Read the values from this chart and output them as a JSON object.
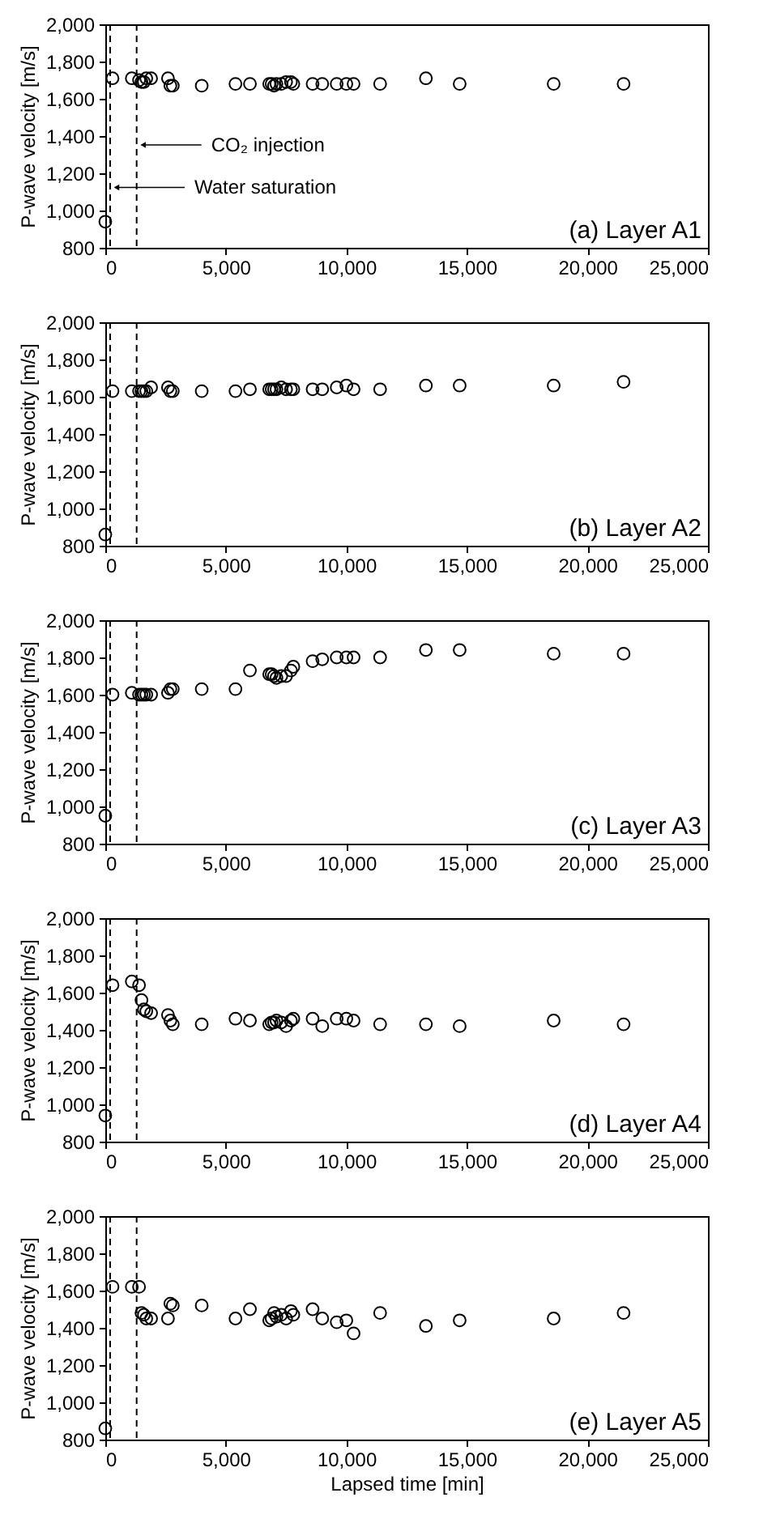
{
  "chart_data": [
    {
      "type": "scatter",
      "ylabel": "P-wave velocity [m/s]",
      "marker": "circle",
      "annotations": [
        "(a) Layer A1"
      ],
      "x": [
        0,
        300,
        1100,
        1400,
        1500,
        1600,
        1700,
        1900,
        2600,
        2700,
        2800,
        4000,
        5400,
        6000,
        6800,
        6900,
        7000,
        7100,
        7300,
        7500,
        7700,
        7800,
        8600,
        9000,
        9600,
        10000,
        10300,
        11400,
        13300,
        14700,
        18600,
        21500
      ],
      "series": [
        {
          "color": "#000000",
          "values": [
            940,
            1710,
            1710,
            1700,
            1690,
            1690,
            1710,
            1710,
            1710,
            1670,
            1670,
            1670,
            1680,
            1680,
            1680,
            1680,
            1670,
            1680,
            1680,
            1690,
            1690,
            1680,
            1680,
            1680,
            1680,
            1680,
            1680,
            1680,
            1710,
            1680,
            1680,
            1680
          ]
        }
      ],
      "ref_lines": [
        {
          "axis": "x",
          "value": 200,
          "label": "Water saturation",
          "line_style": "dashed"
        },
        {
          "axis": "x",
          "value": 1300,
          "label": "CO₂ injection",
          "line_style": "dashed"
        }
      ],
      "xlim": [
        0,
        25000
      ],
      "xticks": [
        {
          "value": 0,
          "label": "0"
        },
        {
          "value": 5000,
          "label": "5,000"
        },
        {
          "value": 10000,
          "label": "10,000"
        },
        {
          "value": 15000,
          "label": "15,000"
        },
        {
          "value": 20000,
          "label": "20,000"
        },
        {
          "value": 25000,
          "label": "25,000"
        }
      ],
      "ylim": [
        800,
        2000
      ],
      "yticks": [
        {
          "value": 800,
          "label": "800"
        },
        {
          "value": 1000,
          "label": "1,000"
        },
        {
          "value": 1200,
          "label": "1,200"
        },
        {
          "value": 1400,
          "label": "1,400"
        },
        {
          "value": 1600,
          "label": "1,600"
        },
        {
          "value": 1800,
          "label": "1,800"
        },
        {
          "value": 2000,
          "label": "2,000"
        }
      ]
    },
    {
      "type": "scatter",
      "ylabel": "P-wave velocity [m/s]",
      "marker": "circle",
      "annotations": [
        "(b) Layer A2"
      ],
      "x": [
        0,
        300,
        1100,
        1400,
        1500,
        1600,
        1700,
        1900,
        2600,
        2700,
        2800,
        4000,
        5400,
        6000,
        6800,
        6900,
        7000,
        7100,
        7300,
        7500,
        7700,
        7800,
        8600,
        9000,
        9600,
        10000,
        10300,
        11400,
        13300,
        14700,
        18600,
        21500
      ],
      "series": [
        {
          "color": "#000000",
          "values": [
            860,
            1630,
            1630,
            1630,
            1630,
            1630,
            1630,
            1650,
            1650,
            1630,
            1630,
            1630,
            1630,
            1640,
            1640,
            1640,
            1640,
            1640,
            1650,
            1640,
            1640,
            1640,
            1640,
            1640,
            1650,
            1660,
            1640,
            1640,
            1660,
            1660,
            1660,
            1680
          ]
        }
      ],
      "ref_lines": [
        {
          "axis": "x",
          "value": 200,
          "line_style": "dashed"
        },
        {
          "axis": "x",
          "value": 1300,
          "line_style": "dashed"
        }
      ],
      "xlim": [
        0,
        25000
      ],
      "xticks": [
        {
          "value": 0,
          "label": "0"
        },
        {
          "value": 5000,
          "label": "5,000"
        },
        {
          "value": 10000,
          "label": "10,000"
        },
        {
          "value": 15000,
          "label": "15,000"
        },
        {
          "value": 20000,
          "label": "20,000"
        },
        {
          "value": 25000,
          "label": "25,000"
        }
      ],
      "ylim": [
        800,
        2000
      ],
      "yticks": [
        {
          "value": 800,
          "label": "800"
        },
        {
          "value": 1000,
          "label": "1,000"
        },
        {
          "value": 1200,
          "label": "1,200"
        },
        {
          "value": 1400,
          "label": "1,400"
        },
        {
          "value": 1600,
          "label": "1,600"
        },
        {
          "value": 1800,
          "label": "1,800"
        },
        {
          "value": 2000,
          "label": "2,000"
        }
      ]
    },
    {
      "type": "scatter",
      "ylabel": "P-wave velocity [m/s]",
      "marker": "circle",
      "annotations": [
        "(c) Layer A3"
      ],
      "x": [
        0,
        300,
        1100,
        1400,
        1500,
        1600,
        1700,
        1900,
        2600,
        2700,
        2800,
        4000,
        5400,
        6000,
        6800,
        6900,
        7000,
        7100,
        7300,
        7500,
        7700,
        7800,
        8600,
        9000,
        9600,
        10000,
        10300,
        11400,
        13300,
        14700,
        18600,
        21500
      ],
      "series": [
        {
          "color": "#000000",
          "values": [
            950,
            1600,
            1610,
            1600,
            1600,
            1600,
            1600,
            1600,
            1610,
            1630,
            1630,
            1630,
            1630,
            1730,
            1710,
            1710,
            1700,
            1690,
            1700,
            1700,
            1730,
            1750,
            1780,
            1790,
            1800,
            1800,
            1800,
            1800,
            1840,
            1840,
            1820,
            1820
          ]
        }
      ],
      "ref_lines": [
        {
          "axis": "x",
          "value": 200,
          "line_style": "dashed"
        },
        {
          "axis": "x",
          "value": 1300,
          "line_style": "dashed"
        }
      ],
      "xlim": [
        0,
        25000
      ],
      "xticks": [
        {
          "value": 0,
          "label": "0"
        },
        {
          "value": 5000,
          "label": "5,000"
        },
        {
          "value": 10000,
          "label": "10,000"
        },
        {
          "value": 15000,
          "label": "15,000"
        },
        {
          "value": 20000,
          "label": "20,000"
        },
        {
          "value": 25000,
          "label": "25,000"
        }
      ],
      "ylim": [
        800,
        2000
      ],
      "yticks": [
        {
          "value": 800,
          "label": "800"
        },
        {
          "value": 1000,
          "label": "1,000"
        },
        {
          "value": 1200,
          "label": "1,200"
        },
        {
          "value": 1400,
          "label": "1,400"
        },
        {
          "value": 1600,
          "label": "1,600"
        },
        {
          "value": 1800,
          "label": "1,800"
        },
        {
          "value": 2000,
          "label": "2,000"
        }
      ]
    },
    {
      "type": "scatter",
      "ylabel": "P-wave velocity [m/s]",
      "marker": "circle",
      "annotations": [
        "(d) Layer A4"
      ],
      "x": [
        0,
        300,
        1100,
        1400,
        1500,
        1600,
        1700,
        1900,
        2600,
        2700,
        2800,
        4000,
        5400,
        6000,
        6800,
        6900,
        7000,
        7100,
        7300,
        7500,
        7700,
        7800,
        8600,
        9000,
        9600,
        10000,
        10300,
        11400,
        13300,
        14700,
        18600,
        21500
      ],
      "series": [
        {
          "color": "#000000",
          "values": [
            940,
            1640,
            1660,
            1640,
            1560,
            1510,
            1500,
            1490,
            1480,
            1450,
            1430,
            1430,
            1460,
            1450,
            1430,
            1440,
            1440,
            1450,
            1440,
            1420,
            1450,
            1460,
            1460,
            1420,
            1460,
            1460,
            1450,
            1430,
            1430,
            1420,
            1450,
            1430
          ]
        }
      ],
      "ref_lines": [
        {
          "axis": "x",
          "value": 200,
          "line_style": "dashed"
        },
        {
          "axis": "x",
          "value": 1300,
          "line_style": "dashed"
        }
      ],
      "xlim": [
        0,
        25000
      ],
      "xticks": [
        {
          "value": 0,
          "label": "0"
        },
        {
          "value": 5000,
          "label": "5,000"
        },
        {
          "value": 10000,
          "label": "10,000"
        },
        {
          "value": 15000,
          "label": "15,000"
        },
        {
          "value": 20000,
          "label": "20,000"
        },
        {
          "value": 25000,
          "label": "25,000"
        }
      ],
      "ylim": [
        800,
        2000
      ],
      "yticks": [
        {
          "value": 800,
          "label": "800"
        },
        {
          "value": 1000,
          "label": "1,000"
        },
        {
          "value": 1200,
          "label": "1,200"
        },
        {
          "value": 1400,
          "label": "1,400"
        },
        {
          "value": 1600,
          "label": "1,600"
        },
        {
          "value": 1800,
          "label": "1,800"
        },
        {
          "value": 2000,
          "label": "2,000"
        }
      ]
    },
    {
      "type": "scatter",
      "xlabel": "Lapsed time [min]",
      "ylabel": "P-wave velocity [m/s]",
      "marker": "circle",
      "annotations": [
        "(e) Layer A5"
      ],
      "x": [
        0,
        300,
        1100,
        1400,
        1500,
        1600,
        1700,
        1900,
        2600,
        2700,
        2800,
        4000,
        5400,
        6000,
        6800,
        6900,
        7000,
        7100,
        7300,
        7500,
        7700,
        7800,
        8600,
        9000,
        9600,
        10000,
        10300,
        11400,
        13300,
        14700,
        18600,
        21500
      ],
      "series": [
        {
          "color": "#000000",
          "values": [
            860,
            1620,
            1620,
            1620,
            1480,
            1470,
            1450,
            1450,
            1450,
            1530,
            1520,
            1520,
            1450,
            1500,
            1440,
            1450,
            1480,
            1460,
            1470,
            1450,
            1490,
            1470,
            1500,
            1450,
            1430,
            1440,
            1370,
            1480,
            1410,
            1440,
            1450,
            1480
          ]
        }
      ],
      "ref_lines": [
        {
          "axis": "x",
          "value": 200,
          "line_style": "dashed"
        },
        {
          "axis": "x",
          "value": 1300,
          "line_style": "dashed"
        }
      ],
      "xlim": [
        0,
        25000
      ],
      "xticks": [
        {
          "value": 0,
          "label": "0"
        },
        {
          "value": 5000,
          "label": "5,000"
        },
        {
          "value": 10000,
          "label": "10,000"
        },
        {
          "value": 15000,
          "label": "15,000"
        },
        {
          "value": 20000,
          "label": "20,000"
        },
        {
          "value": 25000,
          "label": "25,000"
        }
      ],
      "ylim": [
        800,
        2000
      ],
      "yticks": [
        {
          "value": 800,
          "label": "800"
        },
        {
          "value": 1000,
          "label": "1,000"
        },
        {
          "value": 1200,
          "label": "1,200"
        },
        {
          "value": 1400,
          "label": "1,400"
        },
        {
          "value": 1600,
          "label": "1,600"
        },
        {
          "value": 1800,
          "label": "1,800"
        },
        {
          "value": 2000,
          "label": "2,000"
        }
      ]
    }
  ]
}
